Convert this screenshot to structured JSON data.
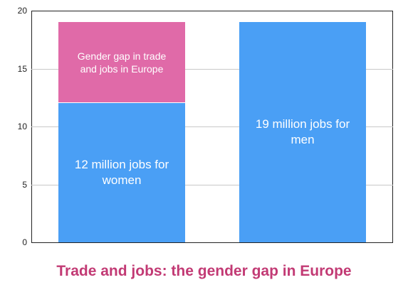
{
  "chart_data": {
    "type": "stacked-bar",
    "title": "Trade and jobs: the gender gap in Europe",
    "categories": [
      null,
      null
    ],
    "series": [
      {
        "color": "#4a9ff5",
        "values": [
          12,
          19
        ],
        "value_labels": [
          "12 million jobs for women",
          "19 million jobs for men"
        ]
      },
      {
        "color": "#e06aa8",
        "values": [
          7,
          null
        ],
        "value_labels": [
          "Gender gap in trade and jobs in Europe",
          null
        ]
      }
    ],
    "ylim": [
      0,
      20
    ],
    "yticks": [
      0,
      5,
      10,
      15,
      20
    ],
    "grid": true
  }
}
